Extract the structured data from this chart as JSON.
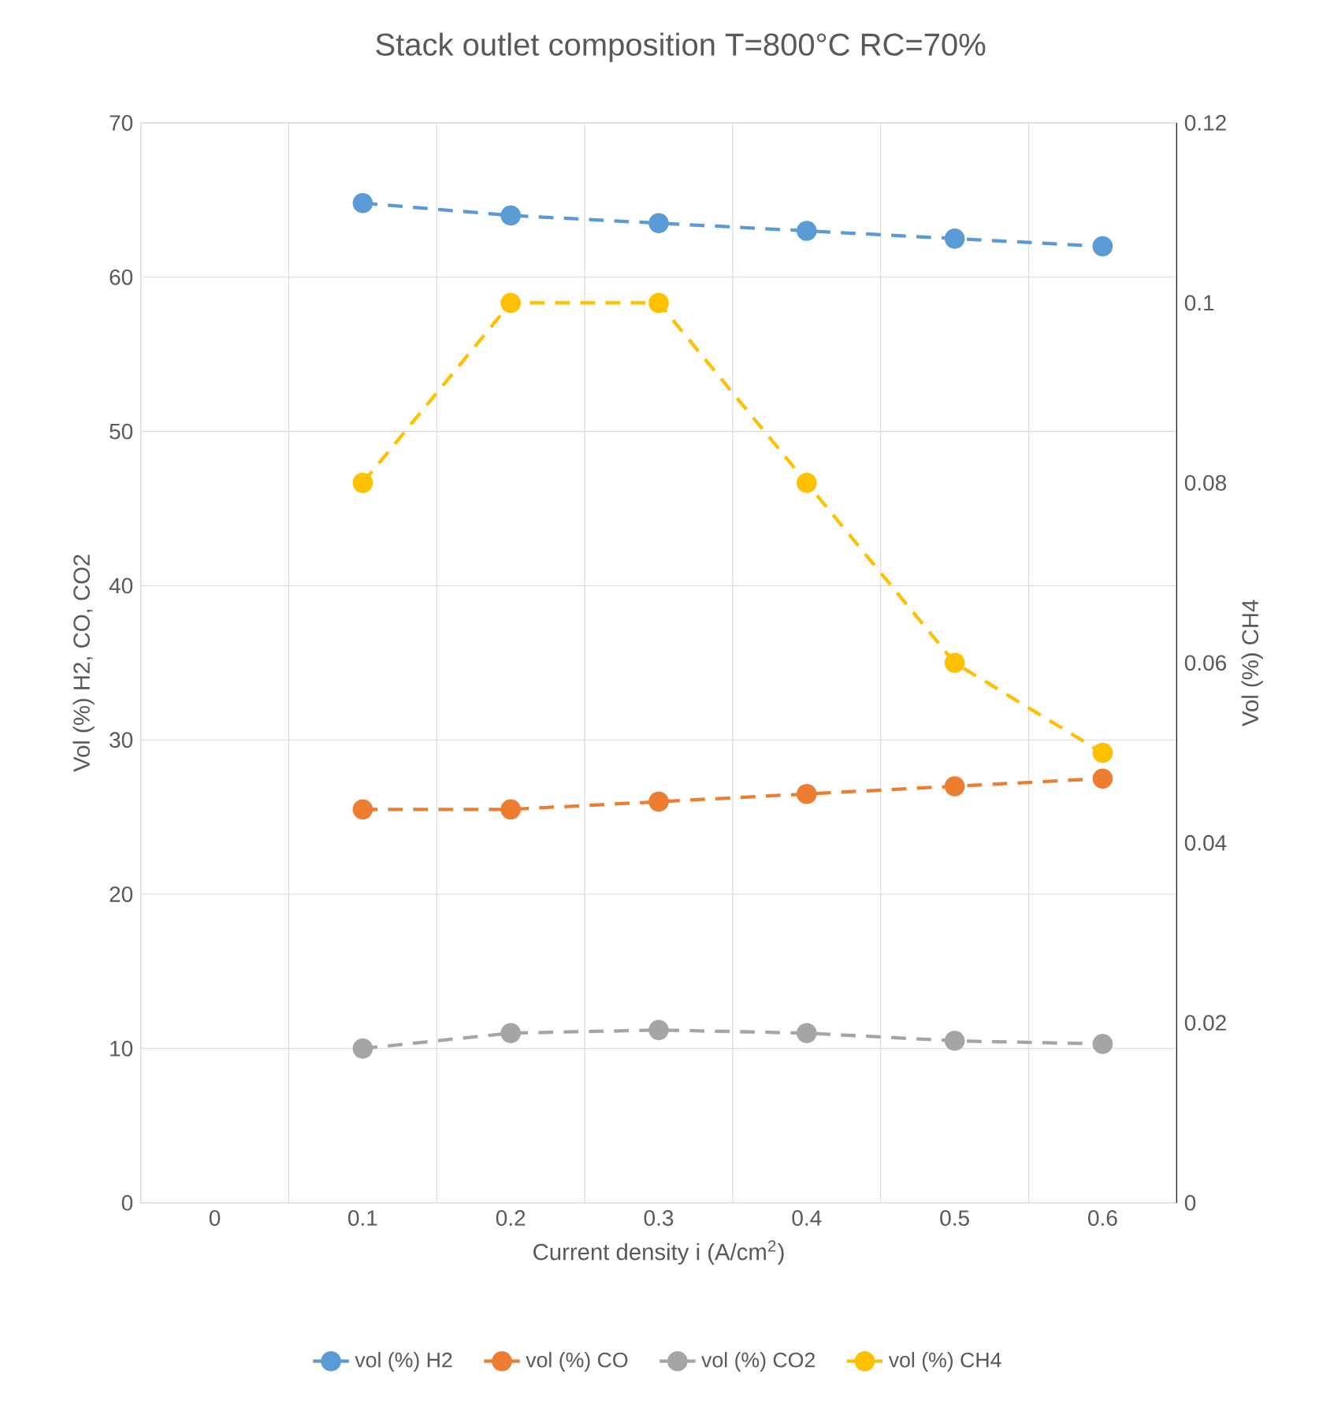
{
  "chart_data": {
    "type": "line",
    "title": "Stack outlet composition T=800°C RC=70%",
    "xlabel": "Current density i  (A/cm$^{2}$)",
    "ylabel": "Vol (%) H2, CO, CO2",
    "y2label": "Vol (%) CH4",
    "categories": [
      "0",
      "0.1",
      "0.2",
      "0.3",
      "0.4",
      "0.5",
      "0.6"
    ],
    "series": [
      {
        "name": "vol (%) H2",
        "color": "#5b9bd5",
        "values": [
          null,
          64.8,
          64,
          63.5,
          63,
          62.5,
          62
        ]
      },
      {
        "name": "vol (%) CO",
        "color": "#ed7d31",
        "values": [
          null,
          25.5,
          25.5,
          26,
          26.5,
          27,
          27.5
        ]
      },
      {
        "name": "vol (%) CO2",
        "color": "#a5a5a5",
        "values": [
          null,
          10,
          11,
          11.2,
          11,
          10.5,
          10.3
        ]
      },
      {
        "name": "vol (%) CH4",
        "color": "#ffc000",
        "axis": "y2",
        "values": [
          null,
          0.08,
          0.1,
          0.1,
          0.08,
          0.06,
          0.05
        ]
      }
    ],
    "ylim": [
      0,
      70
    ],
    "yticks": [
      0,
      10,
      20,
      30,
      40,
      50,
      60,
      70
    ],
    "y2lim": [
      0,
      0.12
    ],
    "y2ticks": [
      0,
      0.02,
      0.04,
      0.06,
      0.08,
      0.1,
      0.12
    ],
    "grid": true,
    "legend": "bottom",
    "marker": "circle",
    "line_style": "dashed"
  }
}
